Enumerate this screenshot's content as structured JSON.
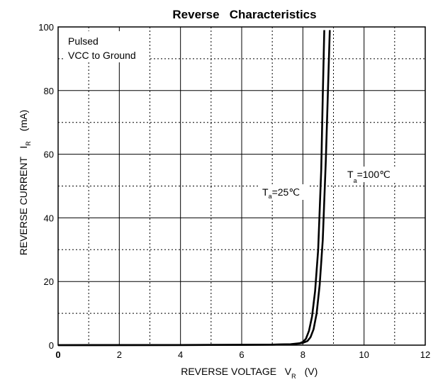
{
  "chart_data": {
    "type": "line",
    "title": "Reverse   Characteristics",
    "xlabel": {
      "main": "REVERSE VOLTAGE   V",
      "sub": "R",
      "unit": "(V)"
    },
    "ylabel": {
      "main": "REVERSE CURRENT   I",
      "sub": "R",
      "unit": "(mA)"
    },
    "xlim": [
      0,
      12
    ],
    "ylim": [
      0,
      100
    ],
    "x_major_ticks": [
      0,
      2,
      4,
      6,
      8,
      10,
      12
    ],
    "x_minor_ticks": [
      1,
      3,
      5,
      7,
      9,
      11
    ],
    "y_major_ticks": [
      0,
      20,
      40,
      60,
      80,
      100
    ],
    "y_minor_ticks": [
      10,
      30,
      50,
      70,
      90
    ],
    "x_tick_labels": [
      "0",
      "2",
      "4",
      "6",
      "8",
      "10",
      "12"
    ],
    "y_tick_labels": [
      "0",
      "20",
      "40",
      "60",
      "80",
      "100"
    ],
    "grid": true,
    "notes": [
      "Pulsed",
      "VCC to Ground"
    ],
    "series": [
      {
        "name": "T a=25℃",
        "label_main": "T",
        "label_sub": "a",
        "label_rest": "=25℃",
        "x": [
          0,
          4,
          6,
          7,
          7.6,
          7.9,
          8.0,
          8.1,
          8.2,
          8.3,
          8.4,
          8.5,
          8.6,
          8.65,
          8.7
        ],
        "y": [
          0,
          0.05,
          0.1,
          0.15,
          0.3,
          0.6,
          1.0,
          2.0,
          4.5,
          9.0,
          17,
          30,
          55,
          78,
          99
        ]
      },
      {
        "name": "T a=100℃",
        "label_main": "T",
        "label_sub": "a",
        "label_rest": "=100℃",
        "x": [
          0,
          4,
          6,
          7,
          7.7,
          8.0,
          8.15,
          8.25,
          8.35,
          8.45,
          8.55,
          8.65,
          8.75,
          8.82,
          8.88
        ],
        "y": [
          0,
          0.05,
          0.1,
          0.15,
          0.3,
          0.7,
          1.3,
          2.5,
          5.0,
          10,
          19,
          33,
          58,
          80,
          99
        ]
      }
    ]
  }
}
